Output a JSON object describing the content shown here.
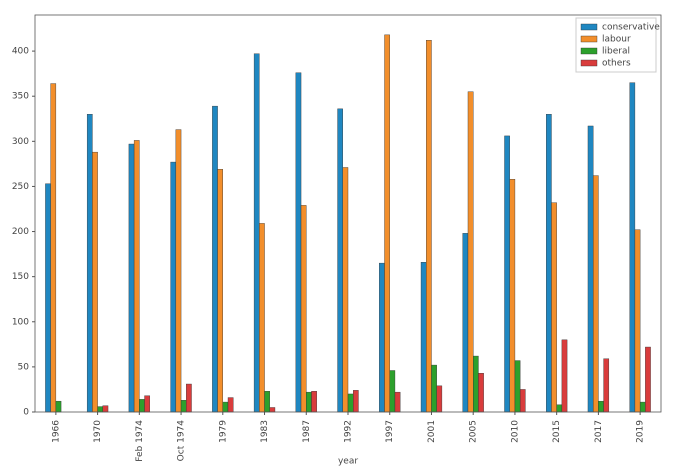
{
  "chart_data": {
    "type": "bar",
    "xlabel": "year",
    "categories": [
      "1966",
      "1970",
      "Feb 1974",
      "Oct 1974",
      "1979",
      "1983",
      "1987",
      "1992",
      "1997",
      "2001",
      "2005",
      "2010",
      "2015",
      "2017",
      "2019"
    ],
    "series": [
      {
        "name": "conservative",
        "color": "#1f87c1",
        "values": [
          253,
          330,
          297,
          277,
          339,
          397,
          376,
          336,
          165,
          166,
          198,
          306,
          330,
          317,
          365
        ]
      },
      {
        "name": "labour",
        "color": "#f28e2b",
        "values": [
          364,
          288,
          301,
          313,
          269,
          209,
          229,
          271,
          418,
          412,
          355,
          258,
          232,
          262,
          202
        ]
      },
      {
        "name": "liberal",
        "color": "#2ca02c",
        "values": [
          12,
          6,
          14,
          13,
          11,
          23,
          22,
          20,
          46,
          52,
          62,
          57,
          8,
          12,
          11
        ]
      },
      {
        "name": "others",
        "color": "#d93c3c",
        "values": [
          0,
          7,
          18,
          31,
          16,
          5,
          23,
          24,
          22,
          29,
          43,
          25,
          80,
          59,
          72
        ]
      }
    ],
    "ylim": [
      0,
      440
    ],
    "yticks": [
      0,
      50,
      100,
      150,
      200,
      250,
      300,
      350,
      400
    ],
    "grid": false,
    "legend": "upper right"
  }
}
